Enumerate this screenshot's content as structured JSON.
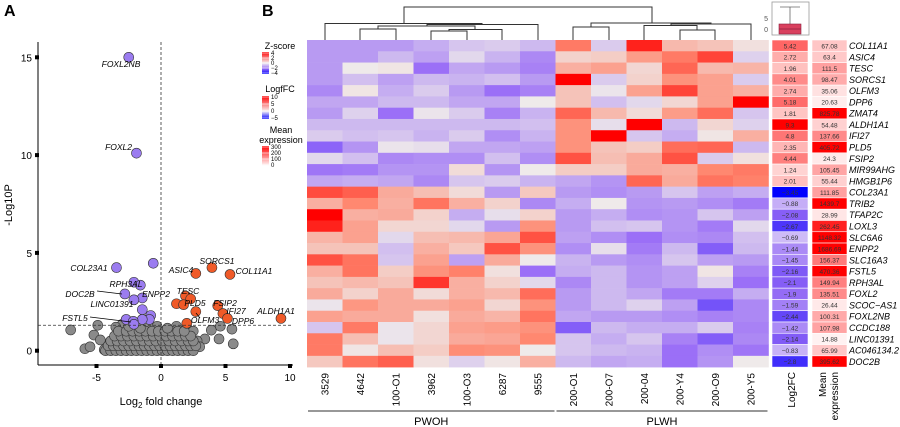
{
  "panels": {
    "a": "A",
    "b": "B"
  },
  "chart_data": [
    {
      "type": "scatter",
      "xlabel_main": "Log",
      "xlabel_sub": "2",
      "xlabel_rest": " fold change",
      "ylabel": "-Log10P",
      "xlim": [
        -9.2,
        10.2
      ],
      "ylim": [
        -0.7,
        15.8
      ],
      "xticks": [
        -5,
        0,
        5,
        10
      ],
      "yticks": [
        0,
        5,
        10,
        15
      ],
      "thresholds": {
        "x": 0,
        "y": 1.3
      },
      "grid": false,
      "colors": {
        "down": "#9b7cf0",
        "up": "#f05a28",
        "ns": "#8a8a8a"
      },
      "down": [
        {
          "x": -2.5,
          "y": 15.0,
          "label": "FOXL2NB"
        },
        {
          "x": -1.9,
          "y": 10.1,
          "label": "FOXL2"
        },
        {
          "x": -3.45,
          "y": 4.25,
          "label": "COL23A1"
        },
        {
          "x": -0.6,
          "y": 4.47
        },
        {
          "x": -2.1,
          "y": 3.5,
          "label": "RPH3AL"
        },
        {
          "x": -1.6,
          "y": 3.35
        },
        {
          "x": -2.8,
          "y": 2.9,
          "label": "DOC2B"
        },
        {
          "x": -1.45,
          "y": 2.7,
          "label": "ENPP2"
        },
        {
          "x": -2.1,
          "y": 2.6,
          "label": "LINC01391"
        },
        {
          "x": -1.45,
          "y": 2.1
        },
        {
          "x": -0.8,
          "y": 1.8
        },
        {
          "x": -0.9,
          "y": 1.6
        },
        {
          "x": -1.45,
          "y": 1.6
        },
        {
          "x": -2.7,
          "y": 1.6
        },
        {
          "x": -2.15,
          "y": 1.5,
          "label": "FSTL5"
        },
        {
          "x": -2.1,
          "y": 1.35
        }
      ],
      "up": [
        {
          "x": 2.7,
          "y": 3.95,
          "label": "ASIC4"
        },
        {
          "x": 3.95,
          "y": 4.25,
          "label": "SORCS1"
        },
        {
          "x": 5.35,
          "y": 3.9,
          "label": "COL11A1"
        },
        {
          "x": 1.9,
          "y": 2.8,
          "label": "TESC"
        },
        {
          "x": 2.3,
          "y": 2.65,
          "label": "PLD5"
        },
        {
          "x": 1.2,
          "y": 2.4
        },
        {
          "x": 1.75,
          "y": 2.35
        },
        {
          "x": 2.7,
          "y": 2.0,
          "label": "OLFM3"
        },
        {
          "x": 4.4,
          "y": 2.3,
          "label": "FSIP2"
        },
        {
          "x": 4.8,
          "y": 1.9,
          "label": "IFI27"
        },
        {
          "x": 5.15,
          "y": 1.65,
          "label": "DPP6"
        },
        {
          "x": 9.3,
          "y": 1.65,
          "label": "ALDH1A1"
        },
        {
          "x": 2.0,
          "y": 1.4
        }
      ],
      "ns": [
        [
          -7.0,
          1.06
        ],
        [
          -5.9,
          0.1
        ],
        [
          -5.5,
          0.2
        ],
        [
          -5.2,
          0.8
        ],
        [
          -4.9,
          1.3
        ],
        [
          -4.7,
          0.55
        ],
        [
          -4.4,
          0.05
        ],
        [
          3.9,
          1.05
        ],
        [
          4.6,
          1.25
        ],
        [
          5.5,
          1.1
        ],
        [
          4.5,
          0.6
        ],
        [
          5.6,
          0.35
        ],
        [
          3.4,
          0.6
        ],
        [
          -3.0,
          1.35
        ],
        [
          -3.5,
          1.2
        ],
        [
          -1.0,
          1.3
        ],
        [
          -0.3,
          1.25
        ],
        [
          1.2,
          1.25
        ],
        [
          2.0,
          1.2
        ],
        [
          2.5,
          1.0
        ],
        [
          2.8,
          0.5
        ],
        [
          3.0,
          0.2
        ],
        [
          -4.3,
          0
        ],
        [
          -3.9,
          0
        ],
        [
          -3.5,
          0
        ],
        [
          -3.1,
          0
        ],
        [
          -2.7,
          0
        ],
        [
          -2.3,
          0
        ],
        [
          -1.9,
          0
        ],
        [
          -1.5,
          0
        ],
        [
          -1.1,
          0
        ],
        [
          -0.7,
          0
        ],
        [
          -0.3,
          0
        ],
        [
          0.1,
          0
        ],
        [
          0.5,
          0
        ],
        [
          0.9,
          0
        ],
        [
          1.3,
          0
        ],
        [
          1.7,
          0
        ],
        [
          2.1,
          0
        ],
        [
          2.5,
          0
        ],
        [
          -4.1,
          0.25
        ],
        [
          -3.7,
          0.25
        ],
        [
          -3.3,
          0.25
        ],
        [
          -2.9,
          0.25
        ],
        [
          -2.5,
          0.25
        ],
        [
          -2.1,
          0.25
        ],
        [
          -1.7,
          0.25
        ],
        [
          -1.3,
          0.25
        ],
        [
          -0.9,
          0.25
        ],
        [
          -0.5,
          0.25
        ],
        [
          -0.1,
          0.25
        ],
        [
          0.3,
          0.25
        ],
        [
          0.7,
          0.25
        ],
        [
          1.1,
          0.25
        ],
        [
          1.5,
          0.25
        ],
        [
          1.9,
          0.25
        ],
        [
          2.3,
          0.25
        ],
        [
          2.7,
          0.25
        ],
        [
          -3.9,
          0.5
        ],
        [
          -3.4,
          0.5
        ],
        [
          -2.9,
          0.5
        ],
        [
          -2.4,
          0.5
        ],
        [
          -1.9,
          0.5
        ],
        [
          -1.4,
          0.5
        ],
        [
          -0.9,
          0.5
        ],
        [
          -0.4,
          0.5
        ],
        [
          0.1,
          0.5
        ],
        [
          0.6,
          0.5
        ],
        [
          1.1,
          0.5
        ],
        [
          1.6,
          0.5
        ],
        [
          2.1,
          0.5
        ],
        [
          2.5,
          0.5
        ],
        [
          -3.6,
          0.75
        ],
        [
          -3.1,
          0.75
        ],
        [
          -2.6,
          0.75
        ],
        [
          -2.1,
          0.75
        ],
        [
          -1.6,
          0.75
        ],
        [
          -1.1,
          0.75
        ],
        [
          -0.6,
          0.75
        ],
        [
          -0.1,
          0.75
        ],
        [
          0.4,
          0.75
        ],
        [
          0.9,
          0.75
        ],
        [
          1.4,
          0.75
        ],
        [
          1.9,
          0.75
        ],
        [
          2.3,
          0.75
        ],
        [
          -3.3,
          1.0
        ],
        [
          -2.7,
          1.0
        ],
        [
          -2.2,
          1.0
        ],
        [
          -1.7,
          1.0
        ],
        [
          -1.2,
          1.0
        ],
        [
          -0.7,
          1.0
        ],
        [
          -0.2,
          1.0
        ],
        [
          0.3,
          1.0
        ],
        [
          0.8,
          1.0
        ],
        [
          1.3,
          1.0
        ],
        [
          1.8,
          1.0
        ],
        [
          -2.5,
          1.25
        ],
        [
          0.5,
          1.15
        ],
        [
          -1.6,
          1.15
        ]
      ]
    },
    {
      "type": "heatmap",
      "columns": [
        "3529",
        "4642",
        "100-O1",
        "3962",
        "100-O3",
        "6287",
        "9555",
        "200-O1",
        "200-O7",
        "200-04",
        "200-Y4",
        "200-O9",
        "200-Y5"
      ],
      "groups": [
        {
          "name": "PWOH",
          "count": 7
        },
        {
          "name": "PLWH",
          "count": 6
        }
      ],
      "annotation_headers": {
        "log2fc": "Log2FC",
        "mean": "Mean expression",
        "mean_line1": "Mean",
        "mean_line2": "expression"
      },
      "legends": [
        {
          "title": "Z-score",
          "ticks": [
            "4",
            "2",
            "0",
            "−2",
            "−4"
          ],
          "range": [
            -4,
            4
          ]
        },
        {
          "title": "LogfFC",
          "ticks": [
            "10",
            "5",
            "0",
            "−5"
          ],
          "range": [
            -5,
            10
          ]
        },
        {
          "title_line1": "Mean",
          "title_line2": "expression",
          "ticks": [
            "300",
            "200",
            "100",
            "0"
          ],
          "range": [
            0,
            300
          ]
        }
      ],
      "boxplot": {
        "ticks": [
          "5",
          "0"
        ],
        "color": "#d9405e"
      },
      "rows": [
        {
          "gene": "COL11A1",
          "log2fc": "5.42",
          "mean": "67.08",
          "z": [
            -1.3,
            -1.3,
            -1.3,
            -1.0,
            -0.6,
            -0.5,
            -0.8,
            2.2,
            -0.5,
            3.5,
            1.0,
            0.8,
            0.2
          ]
        },
        {
          "gene": "ASIC4",
          "log2fc": "2.72",
          "mean": "63.4",
          "z": [
            -1.3,
            -1.3,
            -0.8,
            -1.2,
            -0.3,
            -0.9,
            -1.6,
            0.5,
            0.6,
            1.6,
            2.2,
            3.0,
            -0.4
          ]
        },
        {
          "gene": "TESC",
          "log2fc": "1.96",
          "mean": "111.5",
          "z": [
            -1.3,
            0,
            0.1,
            -2.0,
            -1.1,
            -1.3,
            -1.7,
            1.2,
            1.5,
            0.4,
            2.5,
            1.0,
            1.1
          ]
        },
        {
          "gene": "SORCS1",
          "log2fc": "4.01",
          "mean": "98.47",
          "z": [
            -1.3,
            -0.7,
            -1.2,
            -0.8,
            -0.9,
            -0.7,
            -1.3,
            4.0,
            -0.5,
            0.5,
            1.8,
            1.5,
            -0.5
          ]
        },
        {
          "gene": "OLFM3",
          "log2fc": "2.74",
          "mean": "35.06",
          "z": [
            -1.6,
            0.1,
            -1.0,
            -0.5,
            -1.3,
            -2.0,
            -1.7,
            0.8,
            -0.1,
            1.5,
            3.0,
            1.5,
            1.2
          ]
        },
        {
          "gene": "DPP6",
          "log2fc": "5.18",
          "mean": "20.63",
          "z": [
            -1.1,
            -1.1,
            -0.8,
            -0.8,
            -1.1,
            -1.1,
            0,
            0.8,
            -0.7,
            -0.3,
            0.4,
            1.5,
            4.0
          ]
        },
        {
          "gene": "ZMAT4",
          "log2fc": "1.81",
          "mean": "825.78",
          "z": [
            -1.3,
            -0.4,
            -2.0,
            -0.1,
            -0.5,
            -1.7,
            -0.9,
            2.5,
            1.0,
            0.3,
            1.6,
            2.4,
            -0.6
          ]
        },
        {
          "gene": "ALDH1A1",
          "log2fc": "9.3",
          "mean": "54.48",
          "z": [
            -0.8,
            -0.8,
            -0.8,
            -0.8,
            -0.8,
            -0.8,
            -0.7,
            1.8,
            -0.2,
            4.0,
            -0.8,
            0.4,
            -0.4
          ]
        },
        {
          "gene": "IFI27",
          "log2fc": "4.8",
          "mean": "137.66",
          "z": [
            -0.5,
            -0.7,
            -0.6,
            -0.9,
            -0.5,
            -1.5,
            -0.9,
            1.8,
            4.0,
            -0.6,
            -1.0,
            0.1,
            1.2
          ]
        },
        {
          "gene": "PLD5",
          "log2fc": "2.35",
          "mean": "405.72",
          "z": [
            -2.2,
            -1.4,
            -0.1,
            -0.2,
            -1.1,
            -1.1,
            -1.2,
            1.8,
            0.8,
            0.6,
            2.4,
            2.5,
            -0.8
          ]
        },
        {
          "gene": "FSIP2",
          "log2fc": "4.44",
          "mean": "24.3",
          "z": [
            -0.3,
            -0.7,
            -1.6,
            -1.5,
            -1.5,
            -0.7,
            -1.5,
            2.8,
            0.9,
            1.3,
            2.8,
            -0.5,
            0.2
          ]
        },
        {
          "gene": "MIR99AHG",
          "log2fc": "1.24",
          "mean": "105.45",
          "z": [
            -1.9,
            -1.8,
            -1.4,
            -1.4,
            0.3,
            -1.4,
            0,
            0.6,
            0.6,
            1.3,
            1.2,
            2.0,
            2.2
          ]
        },
        {
          "gene": "HMGB1P6",
          "log2fc": "2.01",
          "mean": "55.44",
          "z": [
            -1.1,
            -1.0,
            -1.1,
            -1.6,
            -0.6,
            -0.5,
            -0.9,
            -1.1,
            -1.4,
            2.5,
            1.3,
            2.3,
            2.1
          ]
        },
        {
          "gene": "COL23A1",
          "log2fc": "−3.45",
          "mean": "111.85",
          "z": [
            2.9,
            2.6,
            1.3,
            0.9,
            0.3,
            -1.3,
            0.7,
            -1.3,
            -1.5,
            -1.3,
            -0.6,
            -1.2,
            -1.0
          ]
        },
        {
          "gene": "TRIB2",
          "log2fc": "−0.88",
          "mean": "1439.7",
          "z": [
            1.2,
            2.0,
            1.2,
            2.3,
            1.2,
            0.5,
            -1.6,
            -1.0,
            0,
            -1.4,
            -1.3,
            -1.5,
            -1.8
          ]
        },
        {
          "gene": "TFAP2C",
          "log2fc": "−2.08",
          "mean": "28.99",
          "z": [
            4.0,
            1.2,
            1.3,
            0.5,
            -1.0,
            -0.2,
            0.5,
            -1.3,
            -1.0,
            -1.5,
            -1.4,
            -0.6,
            -1.2
          ]
        },
        {
          "gene": "LOXL3",
          "log2fc": "−2.67",
          "mean": "262.45",
          "z": [
            3.5,
            1.5,
            0.4,
            0.4,
            -0.3,
            -1.3,
            1.8,
            -1.3,
            -0.7,
            -0.6,
            -1.4,
            -1.8,
            -0.3
          ]
        },
        {
          "gene": "SLC6A6",
          "log2fc": "−0.69",
          "mean": "1148.32",
          "z": [
            1.1,
            1.5,
            -0.3,
            0.9,
            1.0,
            1.4,
            2.8,
            -1.2,
            -1.5,
            -2.0,
            -1.5,
            -1.6,
            -0.7
          ]
        },
        {
          "gene": "ENPP2",
          "log2fc": "−1.44",
          "mean": "1686.69",
          "z": [
            0.8,
            0.8,
            -0.7,
            1.2,
            0.7,
            2.8,
            1.8,
            -1.5,
            -0.2,
            -1.8,
            -0.8,
            -2.3,
            -0.8
          ]
        },
        {
          "gene": "SLC16A3",
          "log2fc": "−1.45",
          "mean": "156.37",
          "z": [
            2.8,
            2.3,
            -0.6,
            1.5,
            -1.2,
            1.3,
            0,
            -0.9,
            -1.3,
            -1.5,
            -0.6,
            -1.2,
            -1.3
          ]
        },
        {
          "gene": "FSTL5",
          "log2fc": "−2.16",
          "mean": "470.36",
          "z": [
            1.2,
            2.3,
            0.6,
            1.8,
            2.1,
            0.2,
            -2.0,
            -1.0,
            -0.8,
            -1.4,
            -1.2,
            0.1,
            -1.7
          ]
        },
        {
          "gene": "RPH3AL",
          "log2fc": "−2.1",
          "mean": "149.94",
          "z": [
            0.8,
            1.0,
            0.8,
            3.2,
            1.2,
            0.5,
            -0.3,
            -1.6,
            -0.8,
            -1.4,
            -1.2,
            -0.4,
            -2.0
          ]
        },
        {
          "gene": "FOXL2",
          "log2fc": "−1.9",
          "mean": "135.51",
          "z": [
            1.3,
            0.5,
            1.3,
            0.3,
            1.2,
            1.0,
            2.4,
            -1.3,
            -0.8,
            -1.1,
            -1.8,
            -1.8,
            -1.0
          ]
        },
        {
          "gene": "SCOC−AS1",
          "log2fc": "−1.59",
          "mean": "26.44",
          "z": [
            -0.1,
            1.7,
            1.3,
            1.3,
            1.5,
            0.4,
            1.8,
            -1.3,
            -0.8,
            -0.4,
            -1.2,
            -2.5,
            -1.6
          ]
        },
        {
          "gene": "FOXL2NB",
          "log2fc": "−2.44",
          "mean": "100.31",
          "z": [
            1.5,
            1.3,
            1.3,
            0.2,
            1.3,
            1.1,
            2.3,
            -1.1,
            -1.3,
            -1.3,
            -1.5,
            -1.7,
            -1.6
          ]
        },
        {
          "gene": "CCDC188",
          "log2fc": "−1.42",
          "mean": "107.98",
          "z": [
            -0.6,
            2.2,
            -0.1,
            0.4,
            1.5,
            1.6,
            1.8,
            -2.3,
            -0.8,
            -1.0,
            -1.0,
            -0.5,
            -1.7
          ]
        },
        {
          "gene": "LINC01391",
          "log2fc": "−2.14",
          "mean": "14.88",
          "z": [
            2.2,
            0.9,
            -0.1,
            0.4,
            1.3,
            1.4,
            2.0,
            -0.6,
            -1.0,
            -0.6,
            -1.7,
            -2.3,
            -1.6
          ]
        },
        {
          "gene": "AC046134.2",
          "log2fc": "−0.83",
          "mean": "65.99",
          "z": [
            2.2,
            0.1,
            0.9,
            0.6,
            1.9,
            1.8,
            0,
            -0.6,
            -0.8,
            -0.9,
            -2.0,
            -1.5,
            -1.9
          ]
        },
        {
          "gene": "DOC2B",
          "log2fc": "−2.8",
          "mean": "395.62",
          "z": [
            0.7,
            2.3,
            2.6,
            0.2,
            -0.4,
            0.1,
            1.2,
            -0.8,
            -1.1,
            -1.0,
            -2.0,
            -1.4,
            0
          ]
        }
      ]
    }
  ]
}
